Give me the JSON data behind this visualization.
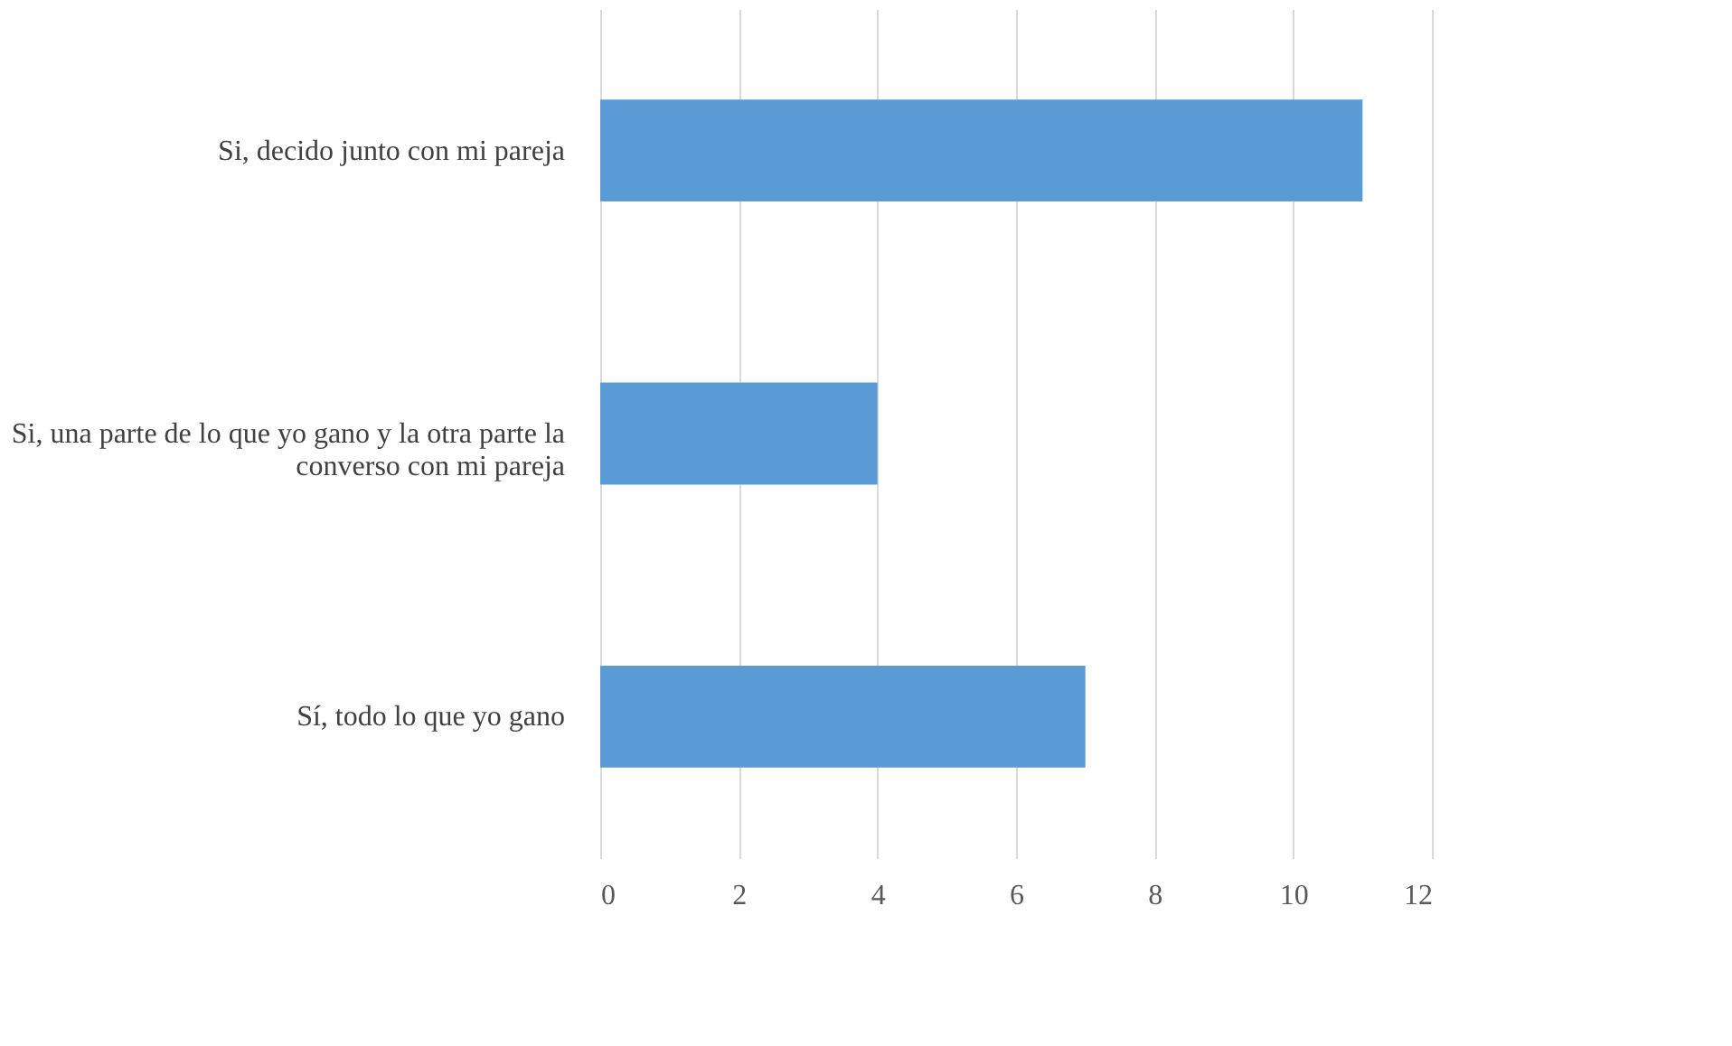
{
  "chart_data": {
    "type": "bar",
    "orientation": "horizontal",
    "categories": [
      "Si, decido junto con mi pareja",
      "Si, una parte de lo que yo gano y la otra parte la converso con mi pareja",
      "Sí, todo lo que yo gano"
    ],
    "values": [
      11,
      4,
      7
    ],
    "color": "#5b9bd5",
    "xlim": [
      0,
      12
    ],
    "xticks": [
      0,
      2,
      4,
      6,
      8,
      10,
      12
    ],
    "grid": "x"
  }
}
